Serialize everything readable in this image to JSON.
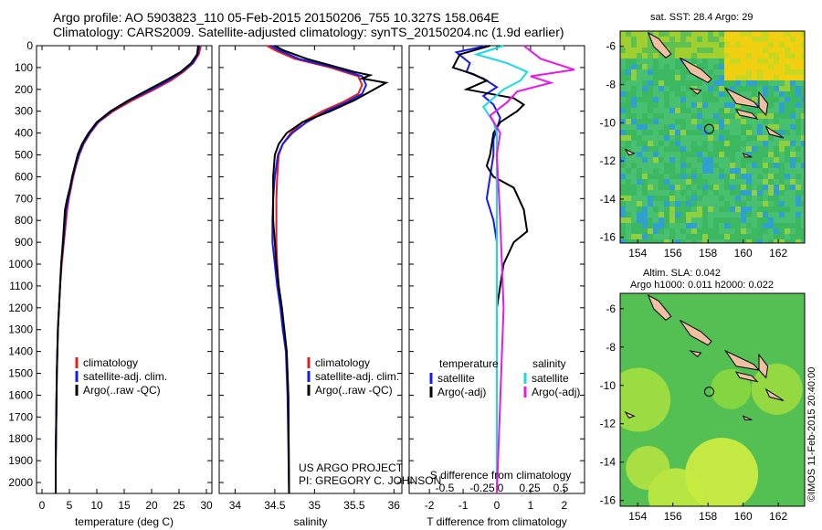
{
  "header": {
    "line1": "Argo profile: AO 5903823_110 05-Feb-2015 20150206_755 10.327S 158.064E",
    "line2": "Climatology: CARS2009. Satellite-adjusted climatology: synTS_20150204.nc (1.9d earlier)"
  },
  "colors": {
    "climatology": "#e02020",
    "satellite": "#1a1ae6",
    "argo": "#000000",
    "sat_salinity": "#19d9e6",
    "argo_salinity": "#e619e6",
    "land": "#f0c0a0"
  },
  "chart_data": [
    {
      "type": "line",
      "id": "temperature",
      "xlabel": "temperature (deg C)",
      "xlim": [
        -1,
        31
      ],
      "xticks": [
        0,
        5,
        10,
        15,
        20,
        25,
        30
      ],
      "ylim": [
        2050,
        0
      ],
      "yticks": [
        0,
        100,
        200,
        300,
        400,
        500,
        600,
        700,
        800,
        900,
        1000,
        1100,
        1200,
        1300,
        1400,
        1500,
        1600,
        1700,
        1800,
        1900,
        2000
      ],
      "legend": {
        "position": "lower-left",
        "entries": [
          "climatology",
          "satellite-adj. clim.",
          "Argo(..raw -QC)"
        ]
      },
      "series": [
        {
          "name": "climatology",
          "color": "#e02020",
          "x": [
            29.0,
            28.6,
            27.6,
            25.8,
            23.5,
            20.5,
            16.5,
            13.0,
            10.3,
            8.8,
            7.6,
            6.8,
            6.2,
            5.7,
            5.3,
            4.9,
            4.6,
            4.0,
            3.6,
            3.3,
            3.1,
            2.9,
            2.8,
            2.7,
            2.6,
            2.5,
            2.5
          ],
          "y": [
            0,
            40,
            80,
            120,
            160,
            200,
            250,
            300,
            350,
            400,
            450,
            500,
            550,
            600,
            650,
            700,
            750,
            900,
            1000,
            1100,
            1200,
            1300,
            1400,
            1500,
            1700,
            1900,
            2050
          ]
        },
        {
          "name": "satellite-adj. clim.",
          "color": "#1a1ae6",
          "x": [
            28.7,
            28.4,
            27.5,
            25.5,
            23.0,
            20.0,
            16.0,
            12.7,
            10.2,
            8.7,
            7.5,
            6.7,
            6.1,
            5.6,
            5.2,
            4.8,
            4.4,
            3.9,
            3.5,
            3.3,
            3.1,
            2.9,
            2.8,
            2.7,
            2.6,
            2.5,
            2.5
          ],
          "y": [
            0,
            40,
            80,
            120,
            160,
            200,
            250,
            300,
            350,
            400,
            450,
            500,
            550,
            600,
            650,
            700,
            750,
            900,
            1000,
            1100,
            1200,
            1300,
            1400,
            1500,
            1700,
            1900,
            2050
          ]
        },
        {
          "name": "Argo(..raw -QC)",
          "color": "#000000",
          "x": [
            28.5,
            28.3,
            27.2,
            25.3,
            22.5,
            19.5,
            15.8,
            12.5,
            10.0,
            8.5,
            7.3,
            6.5,
            6.0,
            5.5,
            5.1,
            4.6,
            4.2,
            3.8,
            3.5,
            3.3,
            3.1,
            2.9,
            2.8,
            2.7,
            2.6,
            2.5,
            2.5
          ],
          "y": [
            0,
            40,
            80,
            120,
            160,
            200,
            250,
            300,
            350,
            400,
            450,
            500,
            550,
            600,
            650,
            700,
            750,
            900,
            1000,
            1100,
            1200,
            1300,
            1400,
            1500,
            1700,
            1900,
            2050
          ]
        }
      ]
    },
    {
      "type": "line",
      "id": "salinity",
      "xlabel": "salinity",
      "xlim": [
        33.8,
        36.1
      ],
      "xticks": [
        34,
        34.5,
        35,
        35.5,
        36
      ],
      "ylim": [
        2050,
        0
      ],
      "legend": {
        "position": "lower-right",
        "entries": [
          "climatology",
          "satellite-adj. clim.",
          "Argo(..raw -QC)"
        ]
      },
      "series": [
        {
          "name": "climatology",
          "color": "#e02020",
          "x": [
            34.4,
            34.5,
            34.75,
            35.2,
            35.55,
            35.6,
            35.55,
            35.35,
            35.1,
            34.85,
            34.7,
            34.6,
            34.55,
            34.53,
            34.52,
            34.52,
            34.52,
            34.53,
            34.55,
            34.58,
            34.62,
            34.65,
            34.67,
            34.68
          ],
          "y": [
            0,
            20,
            60,
            100,
            140,
            180,
            220,
            260,
            300,
            350,
            400,
            450,
            500,
            600,
            700,
            800,
            900,
            1000,
            1100,
            1200,
            1300,
            1400,
            1600,
            2050
          ]
        },
        {
          "name": "satellite-adj. clim.",
          "color": "#1a1ae6",
          "x": [
            34.45,
            34.55,
            34.8,
            35.25,
            35.6,
            35.65,
            35.6,
            35.4,
            35.15,
            34.9,
            34.72,
            34.6,
            34.54,
            34.5,
            34.48,
            34.47,
            34.47,
            34.5,
            34.53,
            34.57,
            34.6,
            34.64,
            34.66,
            34.68
          ],
          "y": [
            0,
            20,
            60,
            100,
            140,
            180,
            220,
            260,
            300,
            350,
            400,
            450,
            500,
            600,
            700,
            800,
            900,
            1000,
            1100,
            1200,
            1300,
            1400,
            1600,
            2050
          ]
        },
        {
          "name": "Argo(..raw -QC)",
          "color": "#000000",
          "x": [
            34.5,
            34.6,
            34.9,
            35.5,
            35.7,
            35.6,
            35.9,
            35.7,
            35.5,
            35.2,
            34.85,
            34.65,
            34.55,
            34.5,
            34.48,
            34.48,
            34.5,
            34.52,
            34.55,
            34.59,
            34.62,
            34.65,
            34.67,
            34.68
          ],
          "y": [
            0,
            20,
            60,
            120,
            135,
            150,
            170,
            210,
            250,
            300,
            350,
            400,
            450,
            500,
            600,
            800,
            900,
            1000,
            1100,
            1200,
            1300,
            1400,
            1600,
            2050
          ]
        }
      ]
    },
    {
      "type": "line",
      "id": "differences",
      "xlabel": "T difference from climatology",
      "xlim": [
        -2.6,
        2.6
      ],
      "xticks": [
        -2,
        -1,
        0,
        1,
        2
      ],
      "top_axis_label": "S difference from climatology",
      "top_ticks": [
        "-0.5",
        "-0.25",
        "0",
        "0.25",
        "0.5"
      ],
      "ylim": [
        2050,
        0
      ],
      "legend": {
        "position": "lower-right",
        "columns": [
          {
            "heading": "temperature",
            "entries": [
              "satellite",
              "Argo(-adj)"
            ]
          },
          {
            "heading": "salinity",
            "entries": [
              "satellite",
              "Argo(-adj)"
            ]
          }
        ]
      },
      "series": [
        {
          "name": "temperature satellite",
          "color": "#1a1ae6",
          "x": [
            -0.3,
            -1.2,
            -0.8,
            -0.9,
            -0.4,
            0.0,
            -0.4,
            -0.1,
            0.0,
            0.1,
            0.0,
            -0.1,
            -0.1,
            -0.2,
            -0.3,
            -0.1,
            0.0,
            0.0,
            0.0,
            0.0,
            0.0,
            0.0
          ],
          "y": [
            0,
            30,
            80,
            120,
            150,
            190,
            230,
            270,
            300,
            330,
            380,
            430,
            500,
            600,
            700,
            800,
            900,
            1000,
            1200,
            1500,
            1800,
            2050
          ]
        },
        {
          "name": "temperature Argo(-adj)",
          "color": "#000000",
          "x": [
            -0.2,
            -1.1,
            -1.3,
            -0.7,
            -0.3,
            -0.9,
            0.5,
            0.8,
            0.6,
            0.1,
            -0.1,
            -0.2,
            -0.3,
            -0.1,
            0.5,
            0.8,
            0.9,
            0.5,
            0.2,
            0.0,
            0.0,
            0.0
          ],
          "y": [
            0,
            40,
            100,
            130,
            160,
            200,
            240,
            270,
            300,
            350,
            400,
            500,
            550,
            600,
            650,
            750,
            850,
            900,
            1000,
            1200,
            1600,
            2050
          ]
        },
        {
          "name": "salinity satellite",
          "color": "#19d9e6",
          "x": [
            0.2,
            -0.6,
            0.3,
            0.9,
            0.7,
            0.2,
            -0.4,
            -0.1,
            0.0,
            0.0,
            0.0,
            0.0,
            0.0
          ],
          "y": [
            0,
            40,
            80,
            120,
            160,
            200,
            280,
            350,
            400,
            500,
            700,
            1000,
            2050
          ]
        },
        {
          "name": "salinity Argo(-adj)",
          "color": "#e619e6",
          "x": [
            0.8,
            1.3,
            2.3,
            1.0,
            1.6,
            0.6,
            0.3,
            -0.2,
            0.1,
            0.0,
            0.1,
            0.2,
            0.0
          ],
          "y": [
            0,
            60,
            110,
            140,
            170,
            210,
            260,
            320,
            400,
            500,
            800,
            1200,
            2050
          ]
        }
      ]
    }
  ],
  "annotation": {
    "line1": "US ARGO PROJECT",
    "line2": "PI: GREGORY C. JOHNSON"
  },
  "maps": {
    "sst": {
      "title": "sat. SST: 28.4 Argo: 29",
      "xticks": [
        "154",
        "156",
        "158",
        "160",
        "162"
      ],
      "yticks": [
        "-6",
        "-8",
        "-10",
        "-12",
        "-14",
        "-16"
      ],
      "xlim": [
        153,
        163.5
      ],
      "ylim": [
        -16.3,
        -5.2
      ]
    },
    "sla": {
      "title_line1": "Altim. SLA: 0.042",
      "title_line2": "Argo h1000: 0.011 h2000: 0.022",
      "xticks": [
        "154",
        "156",
        "158",
        "160",
        "162"
      ],
      "yticks": [
        "-6",
        "-8",
        "-10",
        "-12",
        "-14",
        "-16"
      ],
      "xlim": [
        153,
        163.5
      ],
      "ylim": [
        -16.3,
        -5.2
      ]
    },
    "float_position": {
      "lon": 158.064,
      "lat": -10.327
    }
  },
  "credit": "©IMOS 11-Feb-2015 20:40:00"
}
